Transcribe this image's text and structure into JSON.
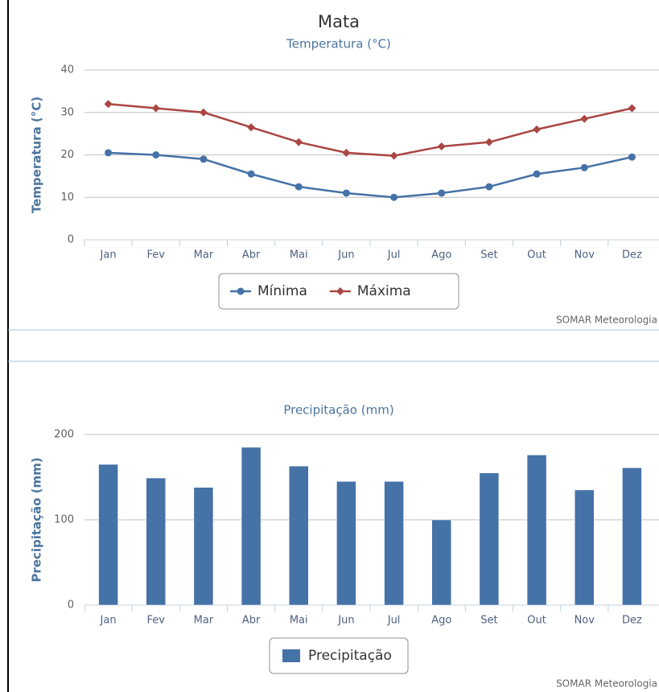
{
  "chart_data": [
    {
      "type": "line",
      "title": "Mata",
      "subtitle": "Temperatura (°C)",
      "y_label": "Temperatura (°C)",
      "categories": [
        "Jan",
        "Fev",
        "Mar",
        "Abr",
        "Mai",
        "Jun",
        "Jul",
        "Ago",
        "Set",
        "Out",
        "Nov",
        "Dez"
      ],
      "series": [
        {
          "name": "Mínima",
          "color": "#4572a7",
          "marker": "circle",
          "values": [
            20.5,
            20,
            19,
            15.5,
            12.5,
            11,
            10,
            11,
            12.5,
            15.5,
            17,
            19.5
          ]
        },
        {
          "name": "Máxima",
          "color": "#aa4643",
          "marker": "diamond",
          "values": [
            32,
            31,
            30,
            26.5,
            23,
            20.5,
            19.8,
            22,
            23,
            26,
            28.5,
            31
          ]
        }
      ],
      "ylim": [
        0,
        40
      ],
      "yticks": [
        0,
        10,
        20,
        30,
        40
      ],
      "grid": true,
      "legend": "bottom",
      "credits": "SOMAR Meteorologia"
    },
    {
      "type": "bar",
      "subtitle": "Precipitação (mm)",
      "y_label": "Precipitação (mm)",
      "categories": [
        "Jan",
        "Fev",
        "Mar",
        "Abr",
        "Mai",
        "Jun",
        "Jul",
        "Ago",
        "Set",
        "Out",
        "Nov",
        "Dez"
      ],
      "series": [
        {
          "name": "Precipitação",
          "color": "#4572a7",
          "values": [
            165,
            149,
            138,
            185,
            163,
            145,
            145,
            100,
            155,
            176,
            135,
            161
          ]
        }
      ],
      "ylim": [
        0,
        200
      ],
      "yticks": [
        0,
        100,
        200
      ],
      "grid": true,
      "legend": "bottom",
      "credits": "SOMAR Meteorologia"
    }
  ]
}
